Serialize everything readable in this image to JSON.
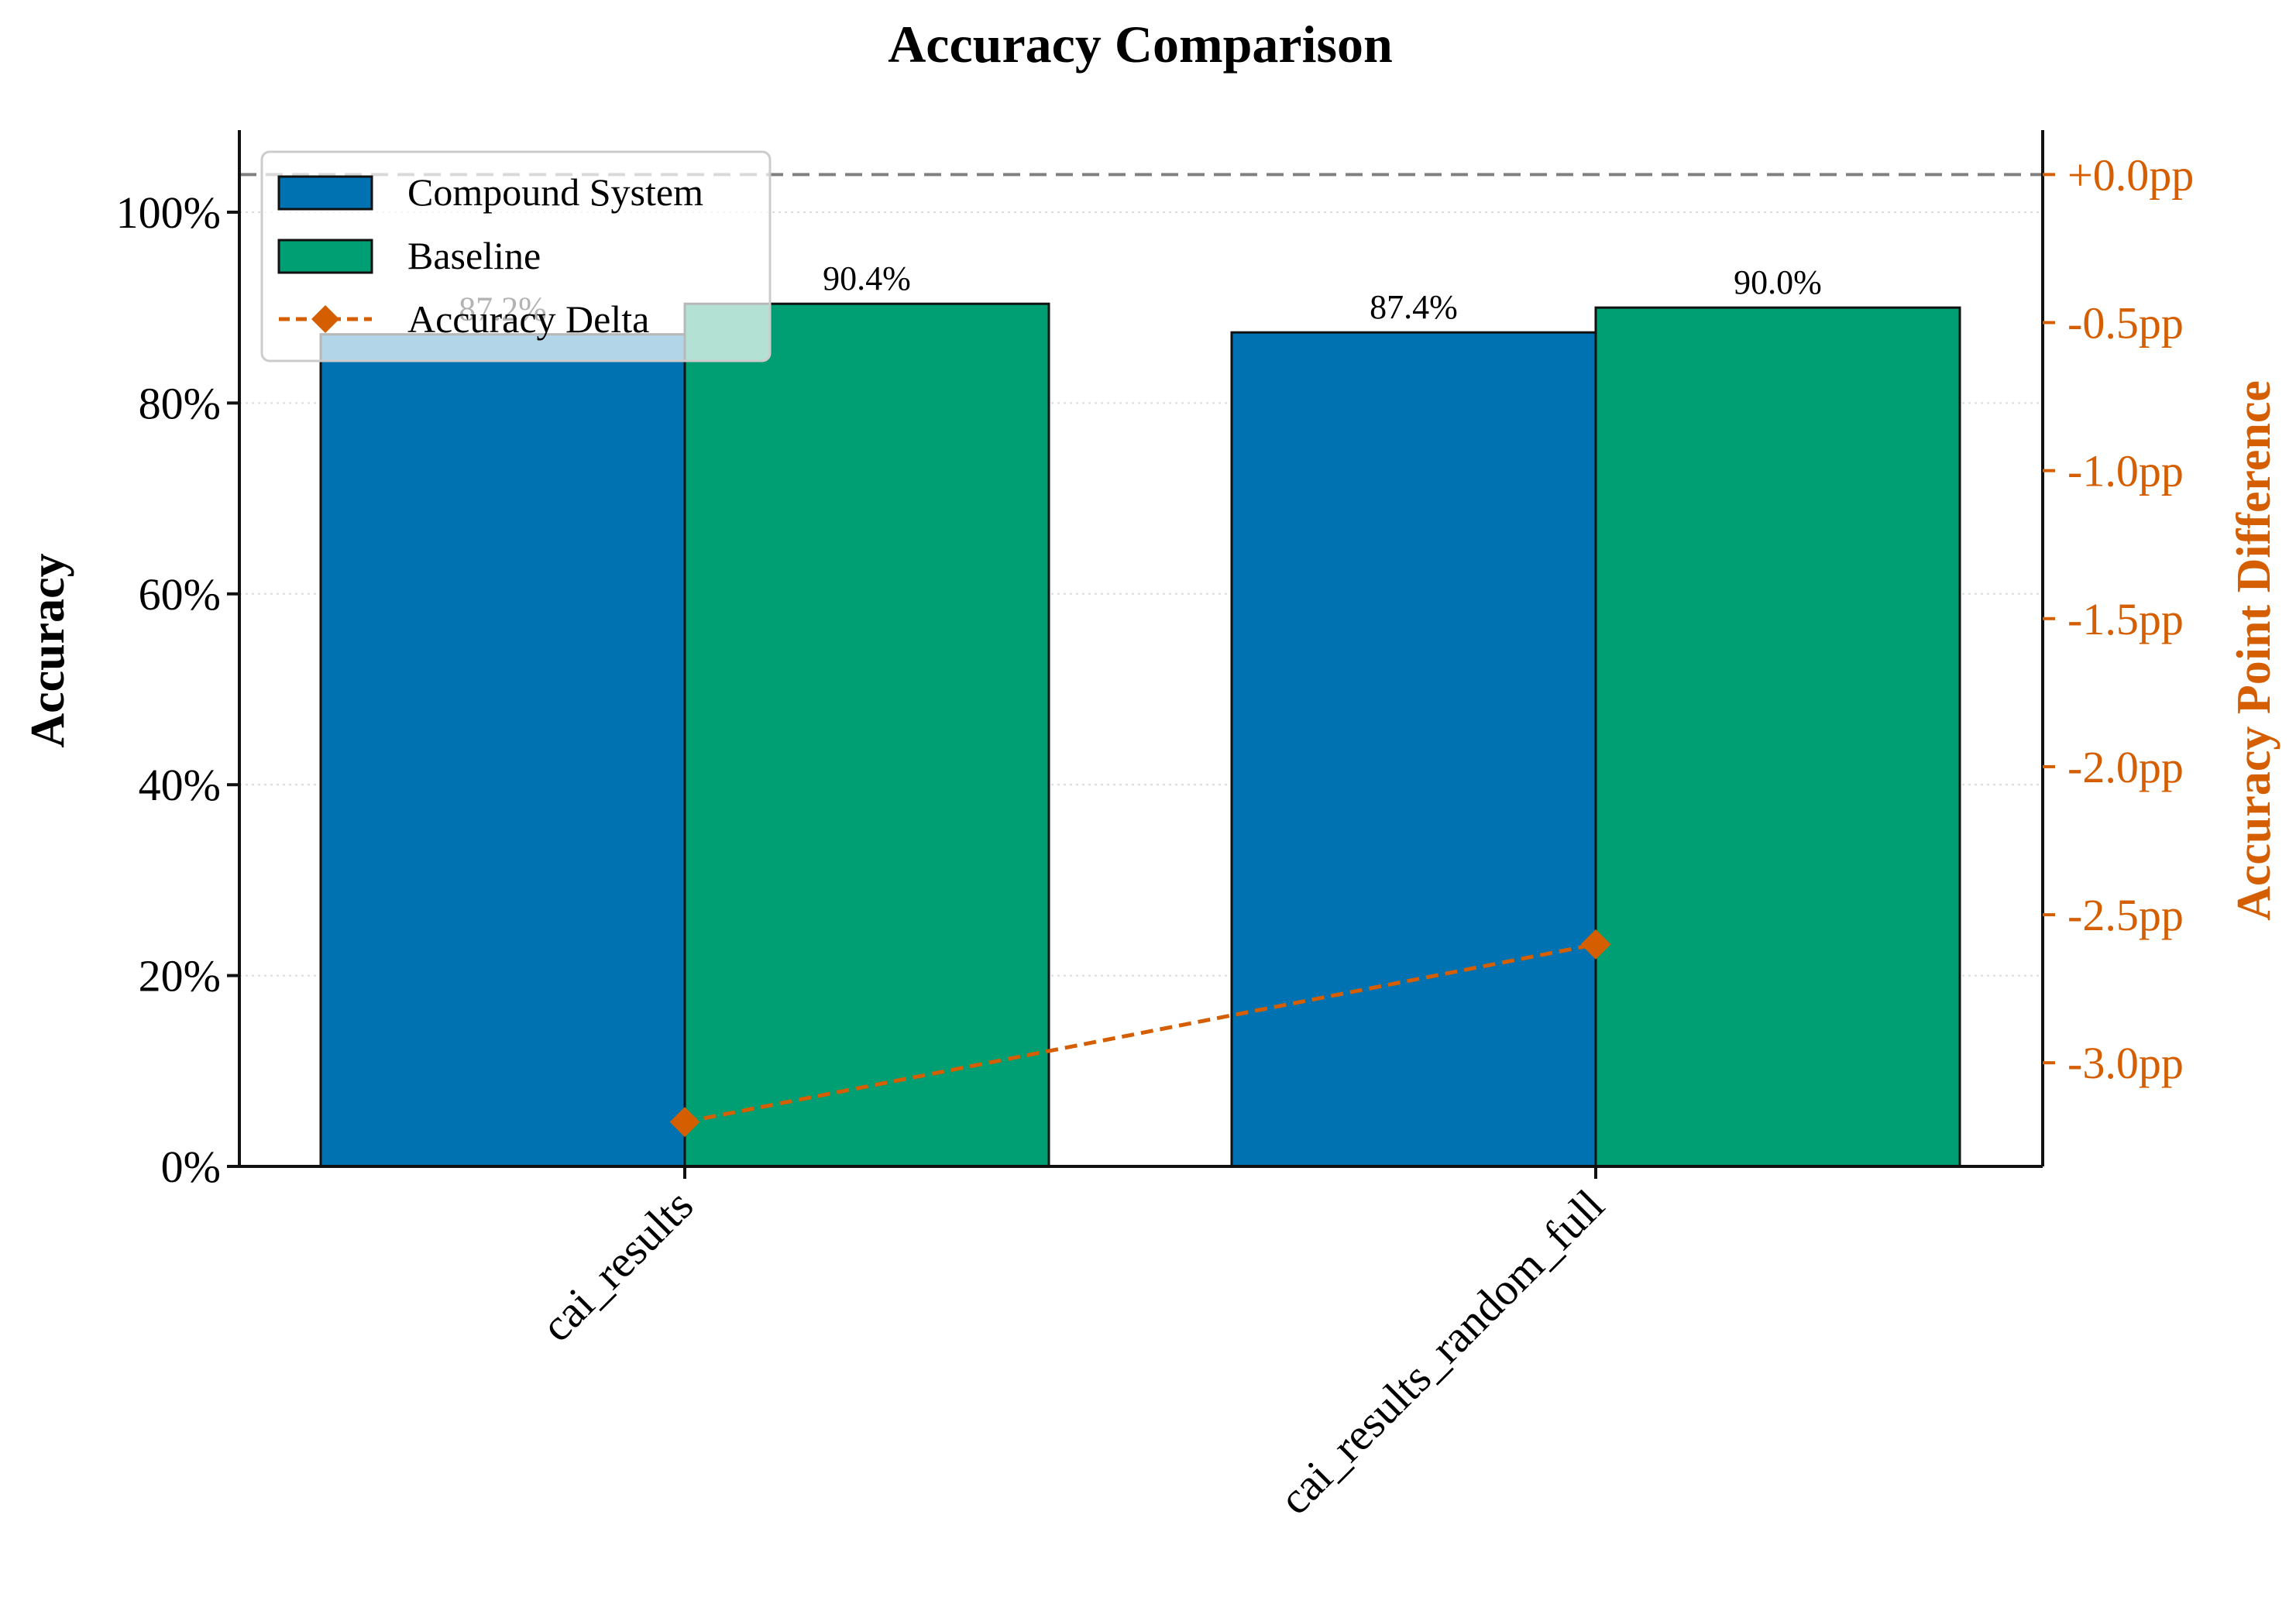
{
  "chart_data": {
    "type": "bar",
    "title": "Accuracy Comparison",
    "ylabel": "Accuracy",
    "ylabel_right": "Accuracy Point Difference",
    "categories": [
      "cai_results",
      "cai_results_random_full"
    ],
    "series": [
      {
        "name": "Compound System",
        "values": [
          87.2,
          87.4
        ],
        "labels": [
          "87.2%",
          "87.4%"
        ],
        "color": "#0072b2"
      },
      {
        "name": "Baseline",
        "values": [
          90.4,
          90.0
        ],
        "labels": [
          "90.4%",
          "90.0%"
        ],
        "color": "#009e73"
      }
    ],
    "line_series": {
      "name": "Accuracy Delta",
      "values": [
        -3.2,
        -2.6
      ],
      "color": "#d55e00",
      "axis": "right",
      "marker": "diamond",
      "linestyle": "dashed"
    },
    "reference_line": {
      "value": 0.0,
      "axis": "right",
      "color": "#808080",
      "linestyle": "dashed"
    },
    "ylim": [
      0,
      108.6
    ],
    "ylim_right": [
      -3.35,
      0.15
    ],
    "yticks": [
      0,
      20,
      40,
      60,
      80,
      100
    ],
    "ytick_labels": [
      "0%",
      "20%",
      "40%",
      "60%",
      "80%",
      "100%"
    ],
    "yticks_right": [
      0.0,
      -0.5,
      -1.0,
      -1.5,
      -2.0,
      -2.5,
      -3.0
    ],
    "ytick_labels_right": [
      "+0.0pp",
      "-0.5pp",
      "-1.0pp",
      "-1.5pp",
      "-2.0pp",
      "-2.5pp",
      "-3.0pp"
    ],
    "grid": "horizontal dotted",
    "legend_position": "top-left",
    "right_axis_color": "#d55e00"
  }
}
